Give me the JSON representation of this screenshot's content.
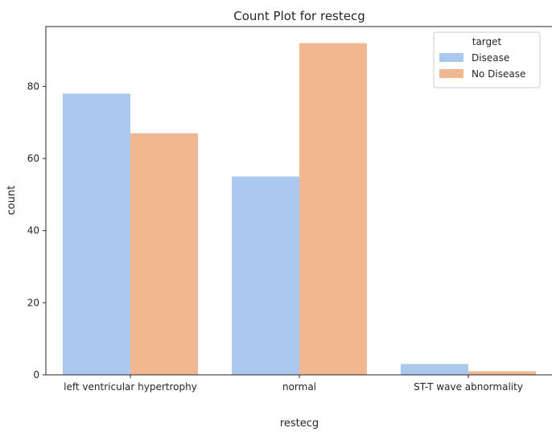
{
  "chart_data": {
    "type": "bar",
    "title": "Count Plot for restecg",
    "xlabel": "restecg",
    "ylabel": "count",
    "categories": [
      "left ventricular hypertrophy",
      "normal",
      "ST-T wave abnormality"
    ],
    "series": [
      {
        "name": "Disease",
        "values": [
          78,
          55,
          3
        ],
        "color": "#abc9ef"
      },
      {
        "name": "No Disease",
        "values": [
          67,
          92,
          1
        ],
        "color": "#f0b891"
      }
    ],
    "ylim": [
      0,
      96.6
    ],
    "yticks": [
      0,
      20,
      40,
      60,
      80
    ],
    "grid": false,
    "legend": {
      "title": "target",
      "placement": "top-right"
    }
  }
}
